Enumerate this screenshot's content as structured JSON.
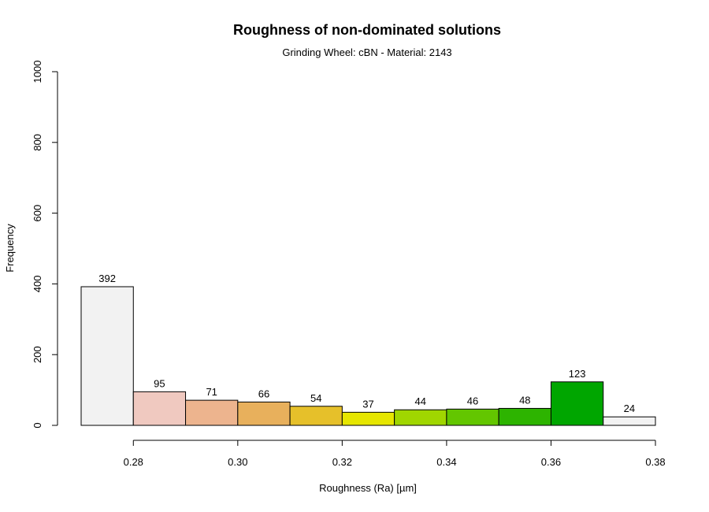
{
  "chart_data": {
    "type": "bar",
    "title": "Roughness of non-dominated solutions",
    "subtitle": "Grinding Wheel: cBN - Material: 2143",
    "xlabel": "Roughness (Ra) [µm]",
    "ylabel": "Frequency",
    "bins": [
      {
        "x0": 0.27,
        "x1": 0.28,
        "value": 392,
        "color": "#f2f2f2"
      },
      {
        "x0": 0.28,
        "x1": 0.29,
        "value": 95,
        "color": "#f0c9c0"
      },
      {
        "x0": 0.29,
        "x1": 0.3,
        "value": 71,
        "color": "#edb48e"
      },
      {
        "x0": 0.3,
        "x1": 0.31,
        "value": 66,
        "color": "#e8b05c"
      },
      {
        "x0": 0.31,
        "x1": 0.32,
        "value": 54,
        "color": "#e6c02a"
      },
      {
        "x0": 0.32,
        "x1": 0.33,
        "value": 37,
        "color": "#e6e600"
      },
      {
        "x0": 0.33,
        "x1": 0.34,
        "value": 44,
        "color": "#a0d600"
      },
      {
        "x0": 0.34,
        "x1": 0.35,
        "value": 46,
        "color": "#63c600"
      },
      {
        "x0": 0.35,
        "x1": 0.36,
        "value": 48,
        "color": "#2db400"
      },
      {
        "x0": 0.36,
        "x1": 0.37,
        "value": 123,
        "color": "#00a600"
      },
      {
        "x0": 0.37,
        "x1": 0.38,
        "value": 24,
        "color": "#f2f2f2"
      }
    ],
    "xlim": [
      0.27,
      0.38
    ],
    "ylim": [
      0,
      1000
    ],
    "xticks": [
      0.28,
      0.3,
      0.32,
      0.34,
      0.36,
      0.38
    ],
    "xtick_labels": [
      "0.28",
      "0.30",
      "0.32",
      "0.34",
      "0.36",
      "0.38"
    ],
    "yticks": [
      0,
      200,
      400,
      600,
      800,
      1000
    ],
    "ytick_labels": [
      "0",
      "200",
      "400",
      "600",
      "800",
      "1000"
    ],
    "grid": false,
    "legend": "none"
  }
}
